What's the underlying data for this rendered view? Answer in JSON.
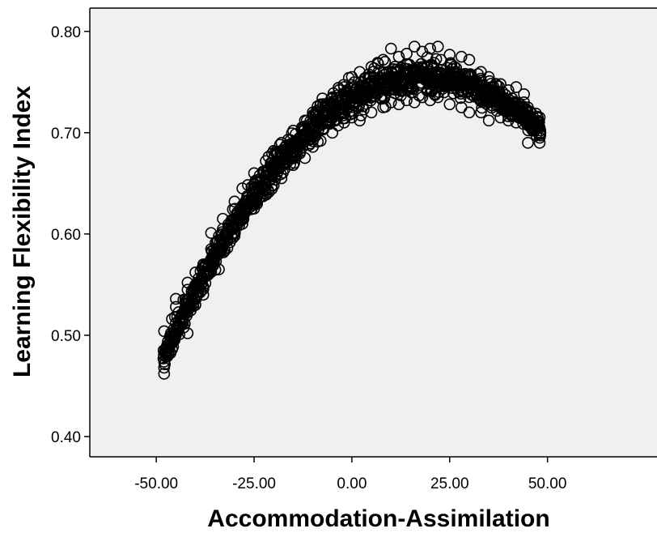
{
  "chart_data": {
    "type": "scatter",
    "title": "",
    "xlabel": "Accommodation-Assimilation",
    "ylabel": "Learning Flexibility Index",
    "xlim": [
      -67,
      78
    ],
    "ylim": [
      0.38,
      0.823
    ],
    "xticks": [
      -50,
      -25,
      0,
      25,
      50
    ],
    "xtick_labels": [
      "-50.00",
      "-25.00",
      "0.00",
      "25.00",
      "50.00"
    ],
    "yticks": [
      0.4,
      0.5,
      0.6,
      0.7,
      0.8
    ],
    "ytick_labels": [
      "0.40",
      "0.50",
      "0.60",
      "0.70",
      "0.80"
    ],
    "grid": false,
    "legend": "none",
    "marker": "open-circle",
    "colors": {
      "plot_background": "#f0f0f0",
      "marker_stroke": "#000000",
      "axis": "#000000"
    },
    "trend": {
      "x_range": [
        -48,
        48
      ],
      "peak_x": 18,
      "peak_y": 0.755,
      "y_at_min_x": 0.48,
      "y_at_max_x": 0.705,
      "spread_at_ends": 0.015,
      "spread_at_center": 0.03
    },
    "series": [
      {
        "values": [
          {
            "x": -48,
            "y": 0.462
          },
          {
            "x": -48,
            "y": 0.468
          },
          {
            "x": -48,
            "y": 0.474
          },
          {
            "x": -48,
            "y": 0.48
          },
          {
            "x": -48,
            "y": 0.504
          },
          {
            "x": -46,
            "y": 0.486
          },
          {
            "x": -46,
            "y": 0.498
          },
          {
            "x": -46,
            "y": 0.516
          },
          {
            "x": -45,
            "y": 0.5
          },
          {
            "x": -45,
            "y": 0.512
          },
          {
            "x": -45,
            "y": 0.528
          },
          {
            "x": -45,
            "y": 0.536
          },
          {
            "x": -42,
            "y": 0.502
          },
          {
            "x": -42,
            "y": 0.528
          },
          {
            "x": -42,
            "y": 0.545
          },
          {
            "x": -42,
            "y": 0.552
          },
          {
            "x": -40,
            "y": 0.53
          },
          {
            "x": -40,
            "y": 0.545
          },
          {
            "x": -40,
            "y": 0.562
          },
          {
            "x": -38,
            "y": 0.54
          },
          {
            "x": -38,
            "y": 0.556
          },
          {
            "x": -38,
            "y": 0.57
          },
          {
            "x": -36,
            "y": 0.572
          },
          {
            "x": -36,
            "y": 0.585
          },
          {
            "x": -36,
            "y": 0.601
          },
          {
            "x": -34,
            "y": 0.565
          },
          {
            "x": -34,
            "y": 0.585
          },
          {
            "x": -34,
            "y": 0.598
          },
          {
            "x": -33,
            "y": 0.59
          },
          {
            "x": -33,
            "y": 0.605
          },
          {
            "x": -33,
            "y": 0.615
          },
          {
            "x": -30,
            "y": 0.598
          },
          {
            "x": -30,
            "y": 0.615
          },
          {
            "x": -30,
            "y": 0.632
          },
          {
            "x": -28,
            "y": 0.61
          },
          {
            "x": -28,
            "y": 0.628
          },
          {
            "x": -28,
            "y": 0.645
          },
          {
            "x": -25,
            "y": 0.625
          },
          {
            "x": -25,
            "y": 0.645
          },
          {
            "x": -25,
            "y": 0.66
          },
          {
            "x": -22,
            "y": 0.64
          },
          {
            "x": -22,
            "y": 0.658
          },
          {
            "x": -22,
            "y": 0.672
          },
          {
            "x": -20,
            "y": 0.648
          },
          {
            "x": -20,
            "y": 0.668
          },
          {
            "x": -20,
            "y": 0.682
          },
          {
            "x": -18,
            "y": 0.655
          },
          {
            "x": -18,
            "y": 0.675
          },
          {
            "x": -18,
            "y": 0.69
          },
          {
            "x": -15,
            "y": 0.668
          },
          {
            "x": -15,
            "y": 0.688
          },
          {
            "x": -15,
            "y": 0.702
          },
          {
            "x": -12,
            "y": 0.675
          },
          {
            "x": -12,
            "y": 0.698
          },
          {
            "x": -12,
            "y": 0.712
          },
          {
            "x": -10,
            "y": 0.686
          },
          {
            "x": -10,
            "y": 0.704
          },
          {
            "x": -10,
            "y": 0.72
          },
          {
            "x": -8,
            "y": 0.692
          },
          {
            "x": -8,
            "y": 0.71
          },
          {
            "x": -8,
            "y": 0.728
          },
          {
            "x": -5,
            "y": 0.7
          },
          {
            "x": -5,
            "y": 0.718
          },
          {
            "x": -5,
            "y": 0.735
          },
          {
            "x": -2,
            "y": 0.71
          },
          {
            "x": -2,
            "y": 0.728
          },
          {
            "x": -2,
            "y": 0.745
          },
          {
            "x": 0,
            "y": 0.715
          },
          {
            "x": 0,
            "y": 0.735
          },
          {
            "x": 0,
            "y": 0.755
          },
          {
            "x": 2,
            "y": 0.712
          },
          {
            "x": 2,
            "y": 0.738
          },
          {
            "x": 2,
            "y": 0.76
          },
          {
            "x": 5,
            "y": 0.72
          },
          {
            "x": 5,
            "y": 0.742
          },
          {
            "x": 5,
            "y": 0.765
          },
          {
            "x": 8,
            "y": 0.725
          },
          {
            "x": 8,
            "y": 0.748
          },
          {
            "x": 8,
            "y": 0.772
          },
          {
            "x": 10,
            "y": 0.73
          },
          {
            "x": 10,
            "y": 0.752
          },
          {
            "x": 10,
            "y": 0.783
          },
          {
            "x": 12,
            "y": 0.728
          },
          {
            "x": 12,
            "y": 0.755
          },
          {
            "x": 12,
            "y": 0.775
          },
          {
            "x": 14,
            "y": 0.732
          },
          {
            "x": 14,
            "y": 0.756
          },
          {
            "x": 14,
            "y": 0.778
          },
          {
            "x": 16,
            "y": 0.73
          },
          {
            "x": 16,
            "y": 0.758
          },
          {
            "x": 16,
            "y": 0.785
          },
          {
            "x": 18,
            "y": 0.735
          },
          {
            "x": 18,
            "y": 0.758
          },
          {
            "x": 18,
            "y": 0.78
          },
          {
            "x": 20,
            "y": 0.732
          },
          {
            "x": 20,
            "y": 0.756
          },
          {
            "x": 20,
            "y": 0.783
          },
          {
            "x": 22,
            "y": 0.735
          },
          {
            "x": 22,
            "y": 0.756
          },
          {
            "x": 22,
            "y": 0.785
          },
          {
            "x": 25,
            "y": 0.728
          },
          {
            "x": 25,
            "y": 0.752
          },
          {
            "x": 25,
            "y": 0.777
          },
          {
            "x": 28,
            "y": 0.725
          },
          {
            "x": 28,
            "y": 0.75
          },
          {
            "x": 28,
            "y": 0.775
          },
          {
            "x": 30,
            "y": 0.72
          },
          {
            "x": 30,
            "y": 0.745
          },
          {
            "x": 30,
            "y": 0.772
          },
          {
            "x": 33,
            "y": 0.72
          },
          {
            "x": 33,
            "y": 0.74
          },
          {
            "x": 33,
            "y": 0.76
          },
          {
            "x": 35,
            "y": 0.712
          },
          {
            "x": 35,
            "y": 0.735
          },
          {
            "x": 35,
            "y": 0.755
          },
          {
            "x": 38,
            "y": 0.715
          },
          {
            "x": 38,
            "y": 0.73
          },
          {
            "x": 38,
            "y": 0.748
          },
          {
            "x": 40,
            "y": 0.712
          },
          {
            "x": 40,
            "y": 0.728
          },
          {
            "x": 40,
            "y": 0.742
          },
          {
            "x": 42,
            "y": 0.71
          },
          {
            "x": 42,
            "y": 0.722
          },
          {
            "x": 42,
            "y": 0.745
          },
          {
            "x": 44,
            "y": 0.72
          },
          {
            "x": 44,
            "y": 0.73
          },
          {
            "x": 44,
            "y": 0.738
          },
          {
            "x": 45,
            "y": 0.69
          },
          {
            "x": 45,
            "y": 0.712
          },
          {
            "x": 45,
            "y": 0.725
          },
          {
            "x": 48,
            "y": 0.69
          },
          {
            "x": 48,
            "y": 0.695
          },
          {
            "x": 48,
            "y": 0.705
          },
          {
            "x": 48,
            "y": 0.715
          }
        ]
      }
    ]
  }
}
